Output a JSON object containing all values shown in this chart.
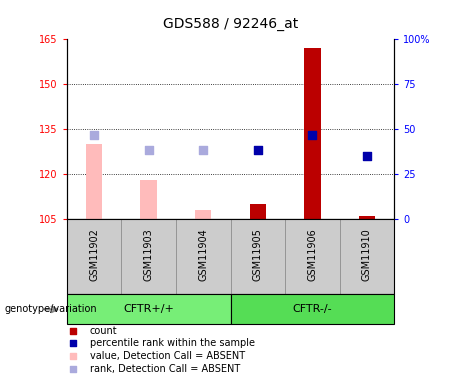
{
  "title": "GDS588 / 92246_at",
  "samples": [
    "GSM11902",
    "GSM11903",
    "GSM11904",
    "GSM11905",
    "GSM11906",
    "GSM11910"
  ],
  "group_split": 3,
  "group_label_left": "CFTR+/+",
  "group_label_right": "CFTR-/-",
  "bar_values": [
    130,
    118,
    108,
    110,
    162,
    106
  ],
  "bar_absent": [
    true,
    true,
    true,
    false,
    false,
    false
  ],
  "rank_values": [
    133,
    128,
    128,
    128,
    133,
    126
  ],
  "rank_absent": [
    true,
    true,
    true,
    false,
    false,
    false
  ],
  "bar_color_absent": "#ffbbbb",
  "bar_color_present": "#bb0000",
  "rank_color_absent": "#aaaadd",
  "rank_color_present": "#0000aa",
  "ylim_left": [
    105,
    165
  ],
  "ylim_right": [
    0,
    100
  ],
  "yticks_left": [
    105,
    120,
    135,
    150,
    165
  ],
  "yticks_right": [
    0,
    25,
    50,
    75,
    100
  ],
  "yticklabels_right": [
    "0",
    "25",
    "50",
    "75",
    "100%"
  ],
  "grid_lines": [
    120,
    135,
    150
  ],
  "bar_width": 0.3,
  "rank_marker_size": 40,
  "sample_box_color": "#cccccc",
  "group_box_color_left": "#77ee77",
  "group_box_color_right": "#55dd55",
  "legend_labels": [
    "count",
    "percentile rank within the sample",
    "value, Detection Call = ABSENT",
    "rank, Detection Call = ABSENT"
  ],
  "legend_colors": [
    "#bb0000",
    "#0000aa",
    "#ffbbbb",
    "#aaaadd"
  ],
  "title_fontsize": 10,
  "tick_fontsize": 7,
  "label_fontsize": 7,
  "legend_fontsize": 7
}
